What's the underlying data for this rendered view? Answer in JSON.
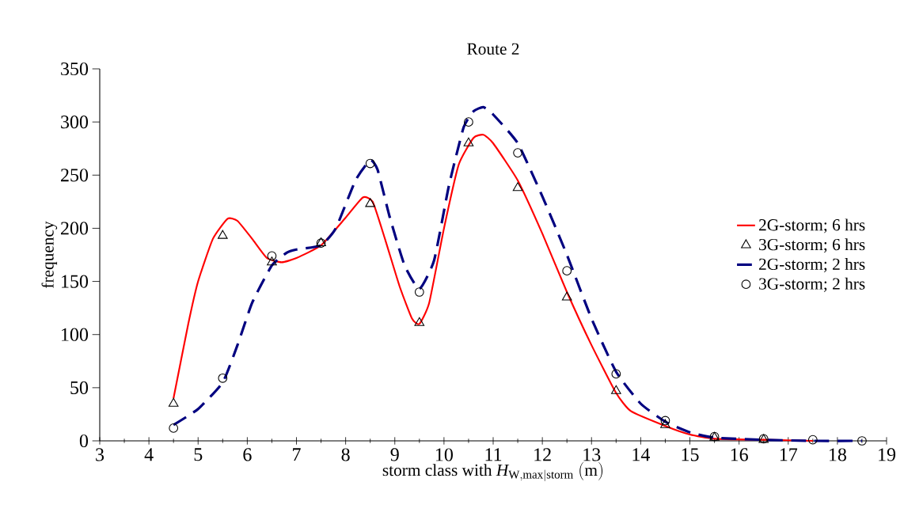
{
  "chart_data": {
    "type": "line",
    "title": "Route 2",
    "xlabel": "\\mathrm{storm\\ class\\ with\\ }\\mathit{H}_{\\mathrm{W,max|storm}}\\mathrm{\\ (m)}",
    "ylabel": "frequency",
    "xlim": [
      3,
      19
    ],
    "ylim": [
      0,
      350
    ],
    "xticks": [
      3,
      4,
      5,
      6,
      7,
      8,
      9,
      10,
      11,
      12,
      13,
      14,
      15,
      16,
      17,
      18,
      19
    ],
    "yticks": [
      0,
      50,
      100,
      150,
      200,
      250,
      300,
      350
    ],
    "legend": "right",
    "grid": false,
    "series": [
      {
        "name": "2G-storm; 6 hrs",
        "type": "line",
        "color": "#ff0000",
        "line_style": "solid",
        "marker": "none",
        "x": [
          4.5,
          4.8,
          5.0,
          5.3,
          5.6,
          5.8,
          6.1,
          6.4,
          6.7,
          7.0,
          7.5,
          8.0,
          8.35,
          8.55,
          8.8,
          9.1,
          9.35,
          9.5,
          9.7,
          10.0,
          10.3,
          10.6,
          10.8,
          11.0,
          11.5,
          12.0,
          12.5,
          13.0,
          13.5,
          13.8,
          14.5,
          15.0,
          15.5,
          16.5,
          17.5
        ],
        "values": [
          40,
          110,
          150,
          190,
          209,
          207,
          190,
          172,
          168,
          172,
          184,
          210,
          229,
          225,
          190,
          145,
          115,
          110,
          130,
          200,
          260,
          285,
          288,
          280,
          245,
          195,
          140,
          90,
          45,
          28,
          14,
          6,
          2,
          1,
          0
        ]
      },
      {
        "name": "3G-storm; 6 hrs",
        "type": "scatter",
        "color": "#000000",
        "marker": "triangle",
        "x": [
          4.5,
          5.5,
          6.5,
          7.5,
          8.5,
          9.5,
          10.5,
          11.5,
          12.5,
          13.5,
          14.5,
          15.5,
          16.5
        ],
        "values": [
          35,
          193,
          168,
          186,
          223,
          111,
          280,
          238,
          135,
          47,
          15,
          3,
          1
        ]
      },
      {
        "name": "2G-storm; 2 hrs",
        "type": "line",
        "color": "#000080",
        "line_style": "dashed",
        "marker": "none",
        "x": [
          4.5,
          5.0,
          5.5,
          5.8,
          6.1,
          6.5,
          6.8,
          7.0,
          7.5,
          7.8,
          8.2,
          8.5,
          8.65,
          8.9,
          9.2,
          9.5,
          9.8,
          10.1,
          10.4,
          10.6,
          10.8,
          11.0,
          11.5,
          12.0,
          12.5,
          13.0,
          13.5,
          14.0,
          14.5,
          15.0,
          15.5,
          16.5,
          17.5,
          18.5
        ],
        "values": [
          15,
          30,
          55,
          90,
          130,
          165,
          177,
          180,
          184,
          200,
          245,
          264,
          255,
          210,
          165,
          143,
          170,
          240,
          295,
          310,
          314,
          307,
          280,
          230,
          175,
          115,
          65,
          35,
          18,
          8,
          3,
          1,
          0,
          0
        ]
      },
      {
        "name": "3G-storm; 2 hrs",
        "type": "scatter",
        "color": "#000000",
        "marker": "circle",
        "x": [
          4.5,
          5.5,
          6.5,
          7.5,
          8.5,
          9.5,
          10.5,
          11.5,
          12.5,
          13.5,
          14.5,
          15.5,
          16.5,
          17.5,
          18.5
        ],
        "values": [
          12,
          59,
          174,
          186,
          261,
          140,
          300,
          271,
          160,
          63,
          19,
          4,
          2,
          1,
          0
        ]
      }
    ]
  }
}
